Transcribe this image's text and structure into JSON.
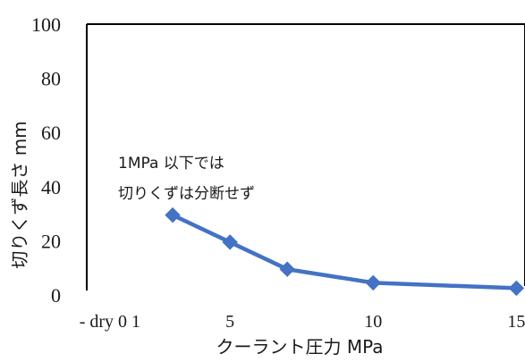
{
  "chart_data": {
    "type": "line",
    "title": "",
    "xlabel": "クーラント圧力 MPa",
    "ylabel": "切りくず長さ mm",
    "ylim": [
      0,
      100
    ],
    "yticks": [
      0,
      20,
      40,
      60,
      80,
      100
    ],
    "xticks": [
      {
        "label": "- dry 0 1",
        "x": 1
      },
      {
        "label": "5",
        "x": 5
      },
      {
        "label": "10",
        "x": 10
      },
      {
        "label": "15",
        "x": 15
      }
    ],
    "series": [
      {
        "color": "#4472c4",
        "marker": "diamond",
        "points": [
          {
            "x": 3,
            "y": 29.5
          },
          {
            "x": 5,
            "y": 19.5
          },
          {
            "x": 7,
            "y": 9.5
          },
          {
            "x": 10,
            "y": 4.5
          },
          {
            "x": 15,
            "y": 2.5
          }
        ]
      }
    ],
    "annotation": [
      "1MPa 以下では",
      "切りくずは分断せず"
    ],
    "grid": false
  }
}
